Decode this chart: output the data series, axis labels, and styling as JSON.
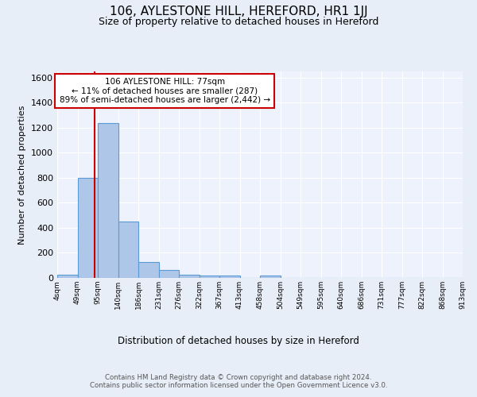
{
  "title": "106, AYLESTONE HILL, HEREFORD, HR1 1JJ",
  "subtitle": "Size of property relative to detached houses in Hereford",
  "xlabel": "Distribution of detached houses by size in Hereford",
  "ylabel": "Number of detached properties",
  "bin_labels": [
    "4sqm",
    "49sqm",
    "95sqm",
    "140sqm",
    "186sqm",
    "231sqm",
    "276sqm",
    "322sqm",
    "367sqm",
    "413sqm",
    "458sqm",
    "504sqm",
    "549sqm",
    "595sqm",
    "640sqm",
    "686sqm",
    "731sqm",
    "777sqm",
    "822sqm",
    "868sqm",
    "913sqm"
  ],
  "bar_values": [
    25,
    800,
    1240,
    450,
    130,
    65,
    25,
    20,
    20,
    0,
    20,
    0,
    0,
    0,
    0,
    0,
    0,
    0,
    0,
    0
  ],
  "bar_color": "#aec6e8",
  "bar_edge_color": "#5b9bd5",
  "vline_x": 1.35,
  "vline_color": "#cc0000",
  "annotation_text": "106 AYLESTONE HILL: 77sqm\n← 11% of detached houses are smaller (287)\n89% of semi-detached houses are larger (2,442) →",
  "annotation_box_color": "#ffffff",
  "annotation_box_edge": "#cc0000",
  "ylim": [
    0,
    1650
  ],
  "yticks": [
    0,
    200,
    400,
    600,
    800,
    1000,
    1200,
    1400,
    1600
  ],
  "footer": "Contains HM Land Registry data © Crown copyright and database right 2024.\nContains public sector information licensed under the Open Government Licence v3.0.",
  "bg_color": "#e8eef8",
  "plot_bg_color": "#edf2fc"
}
